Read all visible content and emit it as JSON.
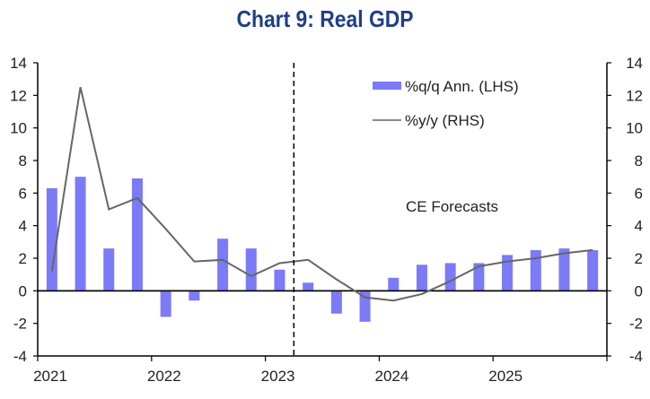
{
  "chart_data": {
    "type": "bar",
    "title": "Chart 9: Real GDP",
    "xlabel": "",
    "ylabel_left": "",
    "ylabel_right": "",
    "x_tick_labels": [
      "2021",
      "2022",
      "2023",
      "2024",
      "2025"
    ],
    "y_left": {
      "range": [
        -4,
        14
      ],
      "ticks": [
        14,
        12,
        10,
        8,
        6,
        4,
        2,
        0,
        -2,
        -4
      ],
      "tick_labels": [
        "14",
        "12",
        "10",
        "8",
        "6",
        "4",
        "2",
        "0",
        "-2",
        "-4"
      ]
    },
    "y_right": {
      "range": [
        -4,
        14
      ],
      "ticks": [
        14,
        12,
        10,
        8,
        6,
        4,
        2,
        0,
        -2,
        -4
      ],
      "tick_labels": [
        "14",
        "12",
        "10",
        "8",
        "6",
        "4",
        "2",
        "0",
        "-2",
        "-4"
      ]
    },
    "categories": [
      "2021Q1",
      "2021Q2",
      "2021Q3",
      "2021Q4",
      "2022Q1",
      "2022Q2",
      "2022Q3",
      "2022Q4",
      "2023Q1",
      "2023Q2",
      "2023Q3",
      "2023Q4",
      "2024Q1",
      "2024Q2",
      "2024Q3",
      "2024Q4",
      "2025Q1",
      "2025Q2",
      "2025Q3",
      "2025Q4"
    ],
    "series": [
      {
        "name": "%q/q Ann. (LHS)",
        "type": "bar",
        "axis": "left",
        "color": "#7b7bf7",
        "values": [
          6.3,
          7.0,
          2.6,
          6.9,
          -1.6,
          -0.6,
          3.2,
          2.6,
          1.3,
          0.5,
          -1.4,
          -1.9,
          0.8,
          1.6,
          1.7,
          1.7,
          2.2,
          2.5,
          2.6,
          2.5
        ]
      },
      {
        "name": "%y/y (RHS)",
        "type": "line",
        "axis": "right",
        "color": "#666666",
        "values": [
          1.2,
          12.5,
          5.0,
          5.7,
          3.8,
          1.8,
          1.9,
          0.9,
          1.7,
          1.9,
          0.7,
          -0.4,
          -0.6,
          -0.2,
          0.6,
          1.5,
          1.8,
          2.0,
          2.3,
          2.5
        ]
      }
    ],
    "legend": {
      "position": "top-right",
      "entries": [
        "%q/q Ann. (LHS)",
        "%y/y (RHS)"
      ]
    },
    "annotations": [
      {
        "text": "CE Forecasts",
        "type": "text"
      },
      {
        "type": "vertical-dashed-line",
        "x": "2023Q1/2023Q2 boundary"
      }
    ],
    "grid": false
  }
}
